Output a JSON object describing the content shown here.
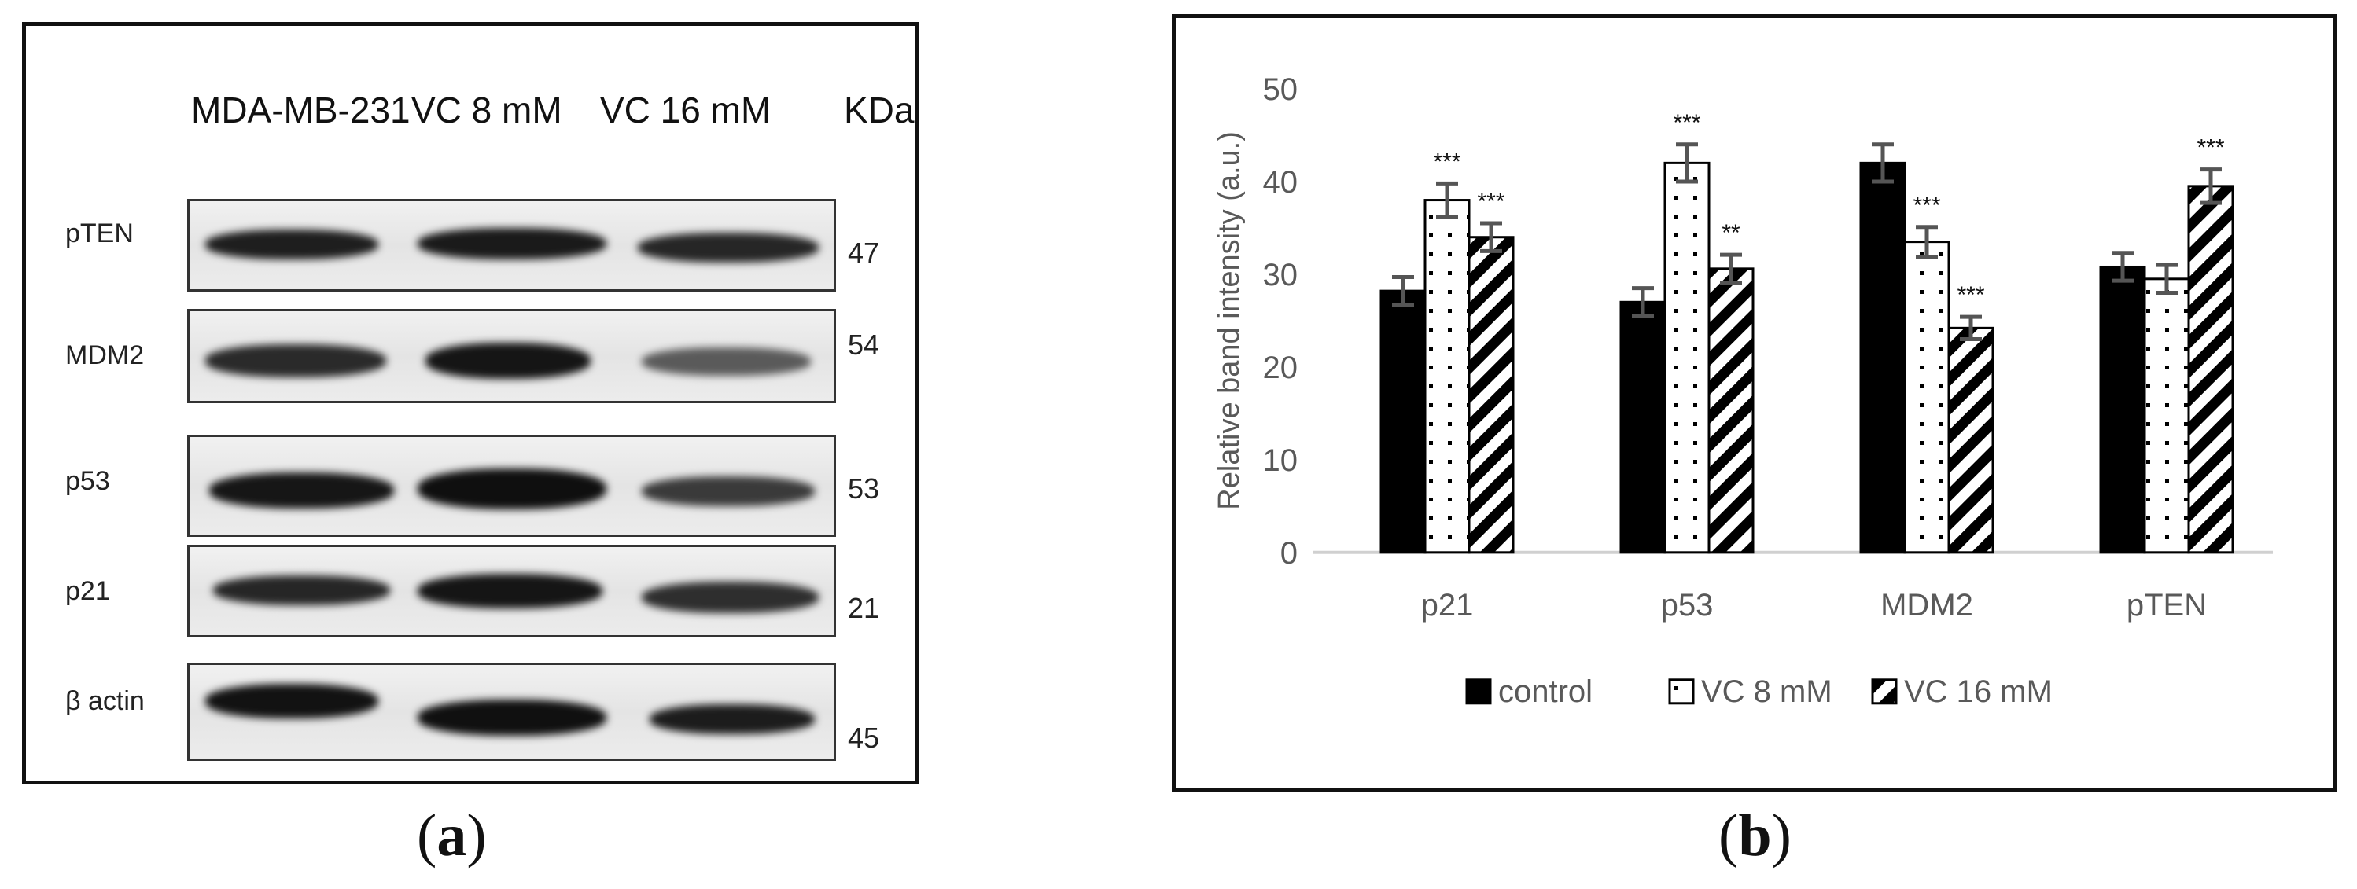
{
  "panel_a": {
    "lanes": [
      "MDA-MB-231",
      "VC 8 mM",
      "VC 16 mM"
    ],
    "kda_header": "KDa",
    "rows": [
      {
        "label": "pTEN",
        "kda": "47"
      },
      {
        "label": "MDM2",
        "kda": "54"
      },
      {
        "label": "p53",
        "kda": "53"
      },
      {
        "label": "p21",
        "kda": "21"
      },
      {
        "label": "β actin",
        "kda": "45"
      }
    ],
    "caption": "a"
  },
  "panel_b": {
    "caption": "b"
  },
  "colors": {
    "control": "#000000",
    "vc8": "#ffffff",
    "vc16": "#000000",
    "error_bar": "#555555",
    "axis_text": "#595959"
  },
  "chart_data": {
    "type": "bar",
    "categories": [
      "p21",
      "p53",
      "MDM2",
      "pTEN"
    ],
    "series": [
      {
        "name": "control",
        "pattern": "solid",
        "values": [
          28.2,
          27.0,
          42.0,
          30.8
        ],
        "errors": [
          1.5,
          1.5,
          2.0,
          1.5
        ],
        "significance": [
          "",
          "",
          "",
          ""
        ]
      },
      {
        "name": "VC 8 mM",
        "pattern": "dots",
        "values": [
          38.0,
          42.0,
          33.5,
          29.5
        ],
        "errors": [
          1.8,
          2.0,
          1.6,
          1.5
        ],
        "significance": [
          "***",
          "***",
          "***",
          ""
        ]
      },
      {
        "name": "VC 16 mM",
        "pattern": "diagonal",
        "values": [
          34.0,
          30.6,
          24.2,
          39.5
        ],
        "errors": [
          1.5,
          1.5,
          1.2,
          1.8
        ],
        "significance": [
          "***",
          "**",
          "***",
          "***"
        ]
      }
    ],
    "yticks": [
      0,
      10,
      20,
      30,
      40,
      50
    ],
    "ylim": [
      0,
      50
    ],
    "ylabel": "Relative band intensity (a.u.)",
    "xlabel": "",
    "title": "",
    "grid": false,
    "legend": "bottom"
  }
}
